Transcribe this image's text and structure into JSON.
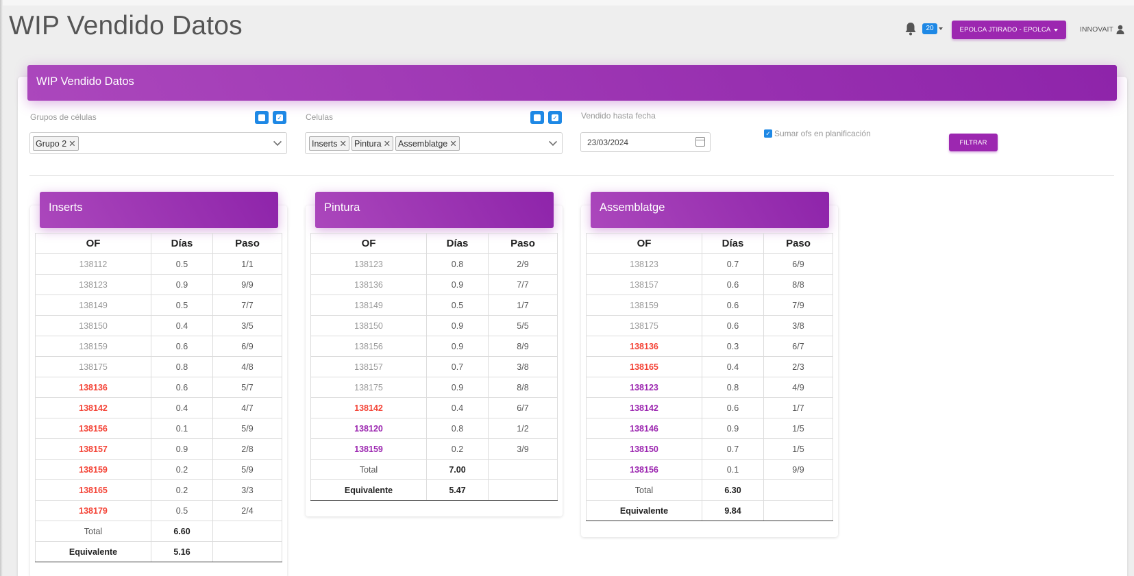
{
  "page": {
    "title": "WIP Vendido Datos"
  },
  "header": {
    "notifications_count": "20",
    "user_button": "EPOLCA JTIRADO - EPOLCA",
    "org_label": "INNOVAIT"
  },
  "card": {
    "title": "WIP Vendido Datos"
  },
  "filters": {
    "grupos_label": "Grupos de células",
    "grupos_tags": [
      "Grupo 2"
    ],
    "celulas_label": "Celulas",
    "celulas_tags": [
      "Inserts",
      "Pintura",
      "Assemblatge"
    ],
    "fecha_label": "Vendido hasta fecha",
    "fecha_value": "23/03/2024",
    "sumar_label": "Sumar ofs en planificación",
    "sumar_checked": true,
    "filtrar_label": "FILTRAR"
  },
  "colors": {
    "accent": "#9c27b0",
    "blue": "#1e88e5",
    "red": "#f44336",
    "grey": "#999999"
  },
  "table_headers": [
    "OF",
    "Días",
    "Paso"
  ],
  "panels": [
    {
      "title": "Inserts",
      "rows": [
        {
          "of": "138112",
          "dias": "0.5",
          "paso": "1/1",
          "status": "grey"
        },
        {
          "of": "138123",
          "dias": "0.9",
          "paso": "9/9",
          "status": "grey"
        },
        {
          "of": "138149",
          "dias": "0.5",
          "paso": "7/7",
          "status": "grey"
        },
        {
          "of": "138150",
          "dias": "0.4",
          "paso": "3/5",
          "status": "grey"
        },
        {
          "of": "138159",
          "dias": "0.6",
          "paso": "6/9",
          "status": "grey"
        },
        {
          "of": "138175",
          "dias": "0.8",
          "paso": "4/8",
          "status": "grey"
        },
        {
          "of": "138136",
          "dias": "0.6",
          "paso": "5/7",
          "status": "red"
        },
        {
          "of": "138142",
          "dias": "0.4",
          "paso": "4/7",
          "status": "red"
        },
        {
          "of": "138156",
          "dias": "0.1",
          "paso": "5/9",
          "status": "red"
        },
        {
          "of": "138157",
          "dias": "0.9",
          "paso": "2/8",
          "status": "red"
        },
        {
          "of": "138159",
          "dias": "0.2",
          "paso": "5/9",
          "status": "red"
        },
        {
          "of": "138165",
          "dias": "0.2",
          "paso": "3/3",
          "status": "red"
        },
        {
          "of": "138179",
          "dias": "0.5",
          "paso": "2/4",
          "status": "red"
        }
      ],
      "total_label": "Total",
      "total": "6.60",
      "equiv_label": "Equivalente",
      "equiv": "5.16"
    },
    {
      "title": "Pintura",
      "rows": [
        {
          "of": "138123",
          "dias": "0.8",
          "paso": "2/9",
          "status": "grey"
        },
        {
          "of": "138136",
          "dias": "0.9",
          "paso": "7/7",
          "status": "grey"
        },
        {
          "of": "138149",
          "dias": "0.5",
          "paso": "1/7",
          "status": "grey"
        },
        {
          "of": "138150",
          "dias": "0.9",
          "paso": "5/5",
          "status": "grey"
        },
        {
          "of": "138156",
          "dias": "0.9",
          "paso": "8/9",
          "status": "grey"
        },
        {
          "of": "138157",
          "dias": "0.7",
          "paso": "3/8",
          "status": "grey"
        },
        {
          "of": "138175",
          "dias": "0.9",
          "paso": "8/8",
          "status": "grey"
        },
        {
          "of": "138142",
          "dias": "0.4",
          "paso": "6/7",
          "status": "red"
        },
        {
          "of": "138120",
          "dias": "0.8",
          "paso": "1/2",
          "status": "purple"
        },
        {
          "of": "138159",
          "dias": "0.2",
          "paso": "3/9",
          "status": "purple"
        }
      ],
      "total_label": "Total",
      "total": "7.00",
      "equiv_label": "Equivalente",
      "equiv": "5.47"
    },
    {
      "title": "Assemblatge",
      "rows": [
        {
          "of": "138123",
          "dias": "0.7",
          "paso": "6/9",
          "status": "grey"
        },
        {
          "of": "138157",
          "dias": "0.6",
          "paso": "8/8",
          "status": "grey"
        },
        {
          "of": "138159",
          "dias": "0.6",
          "paso": "7/9",
          "status": "grey"
        },
        {
          "of": "138175",
          "dias": "0.6",
          "paso": "3/8",
          "status": "grey"
        },
        {
          "of": "138136",
          "dias": "0.3",
          "paso": "6/7",
          "status": "red"
        },
        {
          "of": "138165",
          "dias": "0.4",
          "paso": "2/3",
          "status": "red"
        },
        {
          "of": "138123",
          "dias": "0.8",
          "paso": "4/9",
          "status": "purple"
        },
        {
          "of": "138142",
          "dias": "0.6",
          "paso": "1/7",
          "status": "purple"
        },
        {
          "of": "138146",
          "dias": "0.9",
          "paso": "1/5",
          "status": "purple"
        },
        {
          "of": "138150",
          "dias": "0.7",
          "paso": "1/5",
          "status": "purple"
        },
        {
          "of": "138156",
          "dias": "0.1",
          "paso": "9/9",
          "status": "purple"
        }
      ],
      "total_label": "Total",
      "total": "6.30",
      "equiv_label": "Equivalente",
      "equiv": "9.84"
    }
  ]
}
